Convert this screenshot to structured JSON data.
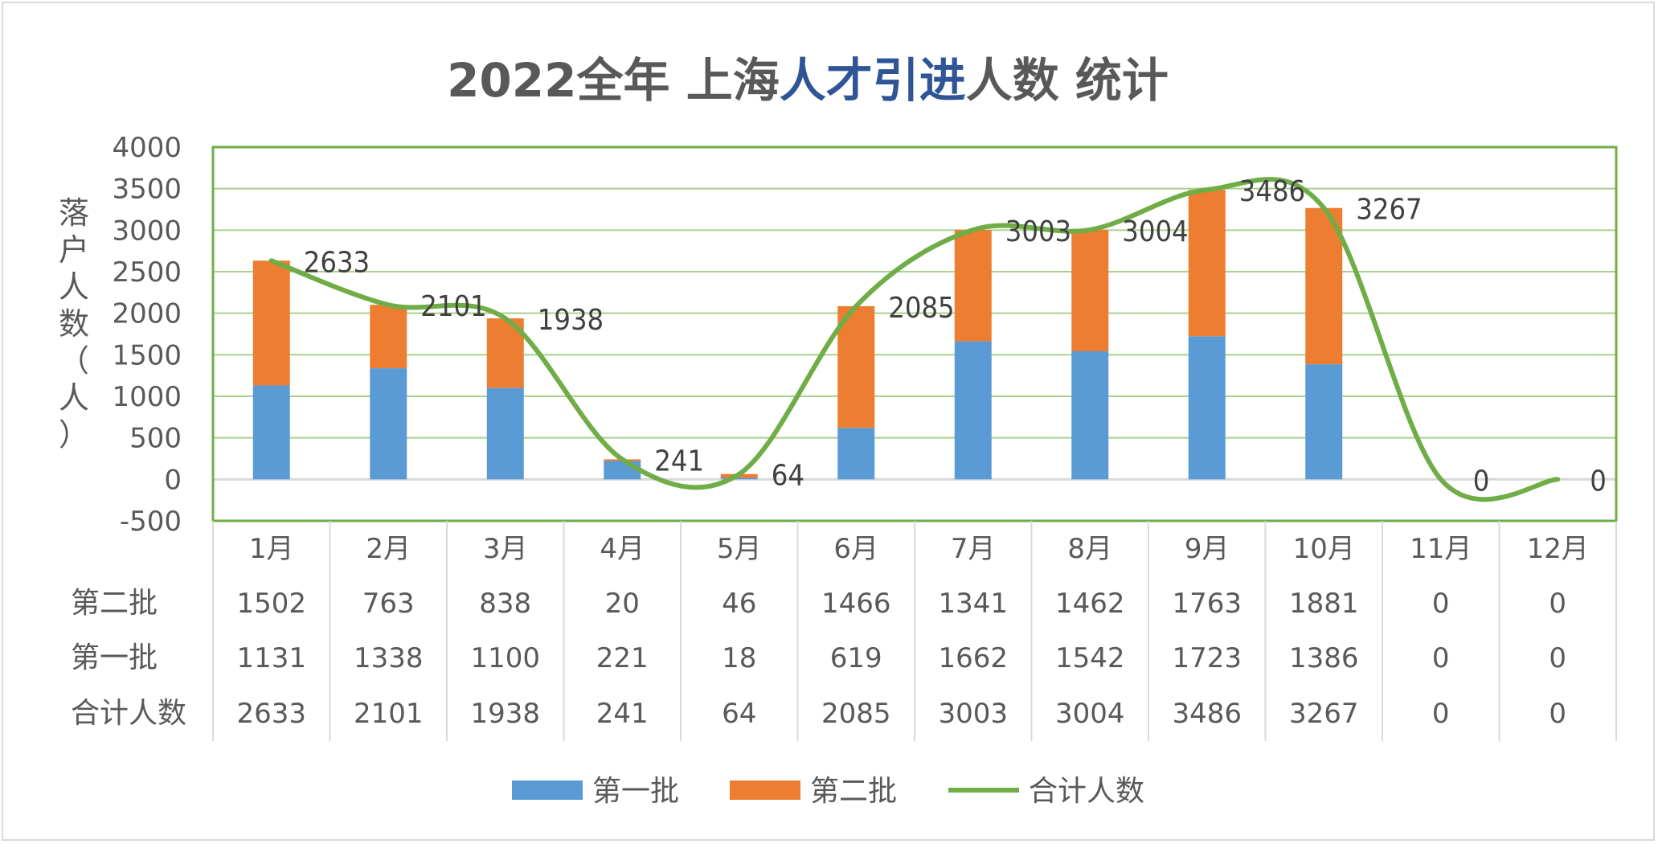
{
  "chart_data": {
    "type": "bar",
    "stacked": true,
    "title_parts": [
      {
        "text": "2022全年  上海",
        "color": "#595959"
      },
      {
        "text": "人才引进",
        "color": "#2f5597"
      },
      {
        "text": "人数  统计",
        "color": "#595959"
      }
    ],
    "ylabel_chars": [
      "落",
      "户",
      "人",
      "数",
      "（",
      "人",
      "）"
    ],
    "categories": [
      "1月",
      "2月",
      "3月",
      "4月",
      "5月",
      "6月",
      "7月",
      "8月",
      "9月",
      "10月",
      "11月",
      "12月"
    ],
    "ylim": [
      -500,
      4000
    ],
    "yticks": [
      -500,
      0,
      500,
      1000,
      1500,
      2000,
      2500,
      3000,
      3500,
      4000
    ],
    "grid": true,
    "legend_position": "bottom",
    "series": [
      {
        "name": "第一批",
        "kind": "bar",
        "color": "#5b9bd5",
        "values": [
          1131,
          1338,
          1100,
          221,
          18,
          619,
          1662,
          1542,
          1723,
          1386,
          0,
          0
        ]
      },
      {
        "name": "第二批",
        "kind": "bar",
        "color": "#ed7d31",
        "values": [
          1502,
          763,
          838,
          20,
          46,
          1466,
          1341,
          1462,
          1763,
          1881,
          0,
          0
        ]
      },
      {
        "name": "合计人数",
        "kind": "line",
        "smooth": true,
        "color": "#70ad47",
        "values": [
          2633,
          2101,
          1938,
          241,
          64,
          2085,
          3003,
          3004,
          3486,
          3267,
          0,
          0
        ]
      }
    ],
    "line_labels": [
      "2633",
      "2101",
      "1938",
      "241",
      "64",
      "2085",
      "3003",
      "3004",
      "3486",
      "3267",
      "0",
      "0"
    ],
    "table": {
      "row_labels": [
        "第二批",
        "第一批",
        "合计人数"
      ],
      "rows": [
        [
          "1502",
          "763",
          "838",
          "20",
          "46",
          "1466",
          "1341",
          "1462",
          "1763",
          "1881",
          "0",
          "0"
        ],
        [
          "1131",
          "1338",
          "1100",
          "221",
          "18",
          "619",
          "1662",
          "1542",
          "1723",
          "1386",
          "0",
          "0"
        ],
        [
          "2633",
          "2101",
          "1938",
          "241",
          "64",
          "2085",
          "3003",
          "3004",
          "3486",
          "3267",
          "0",
          "0"
        ]
      ]
    },
    "colors": {
      "plot_border": "#70ad47",
      "gridline": "#a9d18e",
      "zero_line": "#d9d9d9",
      "text": "#595959",
      "table_line": "#d9d9d9"
    }
  }
}
